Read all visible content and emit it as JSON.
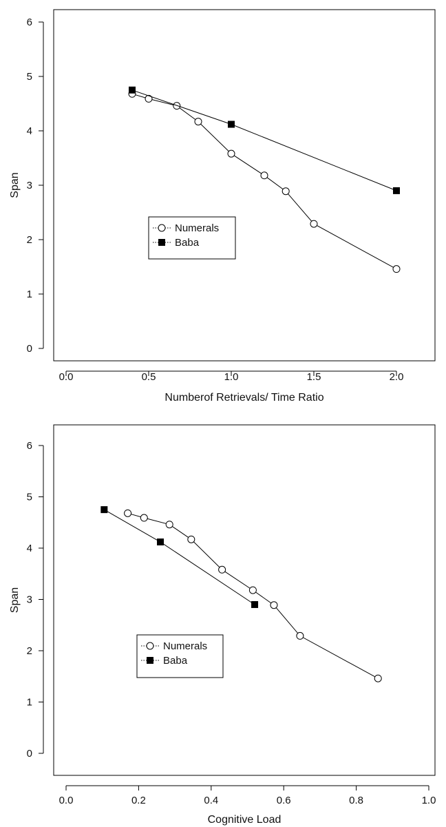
{
  "chart_data": [
    {
      "type": "line",
      "xlabel": "Numberof Retrievals/ Time Ratio",
      "ylabel": "Span",
      "xlim": [
        0,
        2.2
      ],
      "ylim": [
        0,
        6
      ],
      "xticks": [
        0.0,
        0.5,
        1.0,
        1.5,
        2.0
      ],
      "xtick_labels": [
        "0.0",
        "0.5",
        "1.0",
        "1.5",
        "2.0"
      ],
      "yticks": [
        0,
        1,
        2,
        3,
        4,
        5,
        6
      ],
      "ytick_labels": [
        "0",
        "1",
        "2",
        "3",
        "4",
        "5",
        "6"
      ],
      "legend": "center-left",
      "grid": false,
      "series": [
        {
          "name": "Numerals",
          "marker": "open-circle",
          "x": [
            0.4,
            0.5,
            0.67,
            0.8,
            1.0,
            1.2,
            1.33,
            1.5,
            2.0
          ],
          "y": [
            4.68,
            4.59,
            4.46,
            4.17,
            3.58,
            3.18,
            2.89,
            2.29,
            1.46
          ]
        },
        {
          "name": "Baba",
          "marker": "filled-square",
          "x": [
            0.4,
            1.0,
            2.0
          ],
          "y": [
            4.75,
            4.12,
            2.9
          ]
        }
      ]
    },
    {
      "type": "line",
      "xlabel": "Cognitive Load",
      "ylabel": "Span",
      "xlim": [
        0,
        1.0
      ],
      "ylim": [
        0,
        6
      ],
      "xticks": [
        0.0,
        0.2,
        0.4,
        0.6,
        0.8,
        1.0
      ],
      "xtick_labels": [
        "0.0",
        "0.2",
        "0.4",
        "0.6",
        "0.8",
        "1.0"
      ],
      "yticks": [
        0,
        1,
        2,
        3,
        4,
        5,
        6
      ],
      "ytick_labels": [
        "0",
        "1",
        "2",
        "3",
        "4",
        "5",
        "6"
      ],
      "legend": "center-left",
      "grid": false,
      "series": [
        {
          "name": "Numerals",
          "marker": "open-circle",
          "x": [
            0.17,
            0.215,
            0.285,
            0.345,
            0.43,
            0.515,
            0.573,
            0.645,
            0.86
          ],
          "y": [
            4.68,
            4.59,
            4.46,
            4.17,
            3.58,
            3.18,
            2.89,
            2.29,
            1.46
          ]
        },
        {
          "name": "Baba",
          "marker": "filled-square",
          "x": [
            0.105,
            0.26,
            0.52
          ],
          "y": [
            4.75,
            4.12,
            2.9
          ]
        }
      ]
    }
  ]
}
